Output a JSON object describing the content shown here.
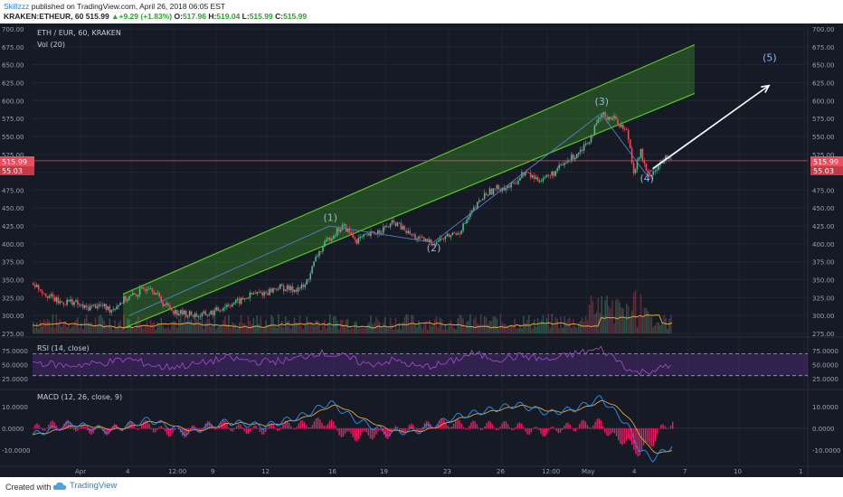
{
  "header": {
    "author": "Skillzzz",
    "published": " published on TradingView.com, April 26, 2018 06:05 EST",
    "symbol": "KRAKEN:ETHEUR, 60",
    "last": "515.99",
    "change": "+9.29 (+1.83%)",
    "o_label": "O:",
    "o_value": "517.96",
    "h_label": "H:",
    "h_value": "519.04",
    "l_label": "L:",
    "l_value": "515.99",
    "c_label": "C:",
    "c_value": "515.99"
  },
  "legend": {
    "symbol": "ETH / EUR, 60, KRAKEN",
    "volume": "Vol (20)",
    "rsi": "RSI (14, close)",
    "macd": "MACD (12, 26, close, 9)"
  },
  "waves": [
    "(1)",
    "(2)",
    "(3)",
    "(4)",
    "(5)"
  ],
  "price_badges": {
    "last": "515.99",
    "ma": "55.03"
  },
  "footer": {
    "created": "Created with",
    "brand": "TradingView"
  },
  "colors": {
    "background": "#161a25",
    "up": "#53b987",
    "down": "#eb4d5c",
    "channel": "#53c629",
    "rsi": "#a84cd1",
    "macd": "#2196f3",
    "signal": "#e8a33d",
    "histogram": "#e91e63"
  },
  "chart_data": {
    "type": "candlestick",
    "price_ylim": [
      275,
      700
    ],
    "price_ticks": [
      "700.00",
      "675.00",
      "650.00",
      "625.00",
      "600.00",
      "575.00",
      "550.00",
      "525.00",
      "500.00",
      "475.00",
      "450.00",
      "425.00",
      "400.00",
      "375.00",
      "350.00",
      "325.00",
      "300.00",
      "275.00"
    ],
    "rsi_ticks": [
      "75.0000",
      "50.0000",
      "25.0000"
    ],
    "rsi_levels": [
      70,
      30
    ],
    "macd_ticks": [
      "10.0000",
      "0.0000",
      "-10.0000"
    ],
    "x_ticks": [
      "Apr",
      "4",
      "12:00",
      "9",
      "12",
      "16",
      "19",
      "23",
      "26",
      "12:00",
      "May",
      "4",
      "7",
      "10",
      "1"
    ],
    "close_points": [
      [
        0,
        345
      ],
      [
        4,
        330
      ],
      [
        8,
        318
      ],
      [
        12,
        320
      ],
      [
        16,
        310
      ],
      [
        20,
        315
      ],
      [
        24,
        308
      ],
      [
        28,
        322
      ],
      [
        32,
        330
      ],
      [
        36,
        343
      ],
      [
        40,
        318
      ],
      [
        44,
        305
      ],
      [
        48,
        302
      ],
      [
        52,
        300
      ],
      [
        56,
        305
      ],
      [
        60,
        315
      ],
      [
        64,
        320
      ],
      [
        68,
        330
      ],
      [
        72,
        332
      ],
      [
        76,
        340
      ],
      [
        80,
        336
      ],
      [
        84,
        340
      ],
      [
        88,
        385
      ],
      [
        92,
        410
      ],
      [
        96,
        425
      ],
      [
        100,
        405
      ],
      [
        104,
        412
      ],
      [
        108,
        420
      ],
      [
        112,
        430
      ],
      [
        116,
        415
      ],
      [
        120,
        405
      ],
      [
        124,
        402
      ],
      [
        128,
        410
      ],
      [
        132,
        418
      ],
      [
        136,
        445
      ],
      [
        140,
        470
      ],
      [
        144,
        478
      ],
      [
        148,
        480
      ],
      [
        152,
        500
      ],
      [
        156,
        490
      ],
      [
        160,
        495
      ],
      [
        164,
        510
      ],
      [
        168,
        525
      ],
      [
        172,
        545
      ],
      [
        176,
        580
      ],
      [
        180,
        575
      ],
      [
        184,
        555
      ],
      [
        186,
        500
      ],
      [
        188,
        530
      ],
      [
        190,
        495
      ],
      [
        193,
        505
      ],
      [
        196,
        520
      ],
      [
        198,
        516
      ]
    ],
    "rsi_points": [
      [
        0,
        55
      ],
      [
        10,
        48
      ],
      [
        20,
        52
      ],
      [
        30,
        60
      ],
      [
        40,
        45
      ],
      [
        50,
        50
      ],
      [
        60,
        62
      ],
      [
        70,
        55
      ],
      [
        80,
        58
      ],
      [
        88,
        72
      ],
      [
        96,
        65
      ],
      [
        104,
        50
      ],
      [
        112,
        58
      ],
      [
        120,
        45
      ],
      [
        128,
        52
      ],
      [
        136,
        70
      ],
      [
        144,
        60
      ],
      [
        152,
        66
      ],
      [
        160,
        58
      ],
      [
        168,
        70
      ],
      [
        176,
        78
      ],
      [
        182,
        55
      ],
      [
        186,
        35
      ],
      [
        192,
        40
      ],
      [
        198,
        48
      ]
    ],
    "macd_points": [
      [
        0,
        -3
      ],
      [
        12,
        2
      ],
      [
        24,
        -1
      ],
      [
        36,
        4
      ],
      [
        48,
        -2
      ],
      [
        60,
        3
      ],
      [
        72,
        1
      ],
      [
        84,
        6
      ],
      [
        92,
        12
      ],
      [
        100,
        4
      ],
      [
        110,
        -2
      ],
      [
        120,
        -1
      ],
      [
        130,
        5
      ],
      [
        140,
        8
      ],
      [
        150,
        11
      ],
      [
        160,
        7
      ],
      [
        168,
        9
      ],
      [
        176,
        14
      ],
      [
        184,
        2
      ],
      [
        188,
        -10
      ],
      [
        192,
        -14
      ],
      [
        198,
        -8
      ]
    ],
    "channel": {
      "lower": [
        [
          28,
          282
        ],
        [
          205,
          610
        ]
      ],
      "upper": [
        [
          28,
          330
        ],
        [
          205,
          678
        ]
      ]
    },
    "projection": {
      "from": [
        192,
        505
      ],
      "to": [
        228,
        621
      ]
    },
    "annotations": [
      {
        "label": "(1)",
        "x": 92,
        "y": 432
      },
      {
        "label": "(2)",
        "x": 124,
        "y": 390
      },
      {
        "label": "(3)",
        "x": 176,
        "y": 594
      },
      {
        "label": "(4)",
        "x": 190,
        "y": 487
      },
      {
        "label": "(5)",
        "x": 228,
        "y": 655
      }
    ]
  }
}
